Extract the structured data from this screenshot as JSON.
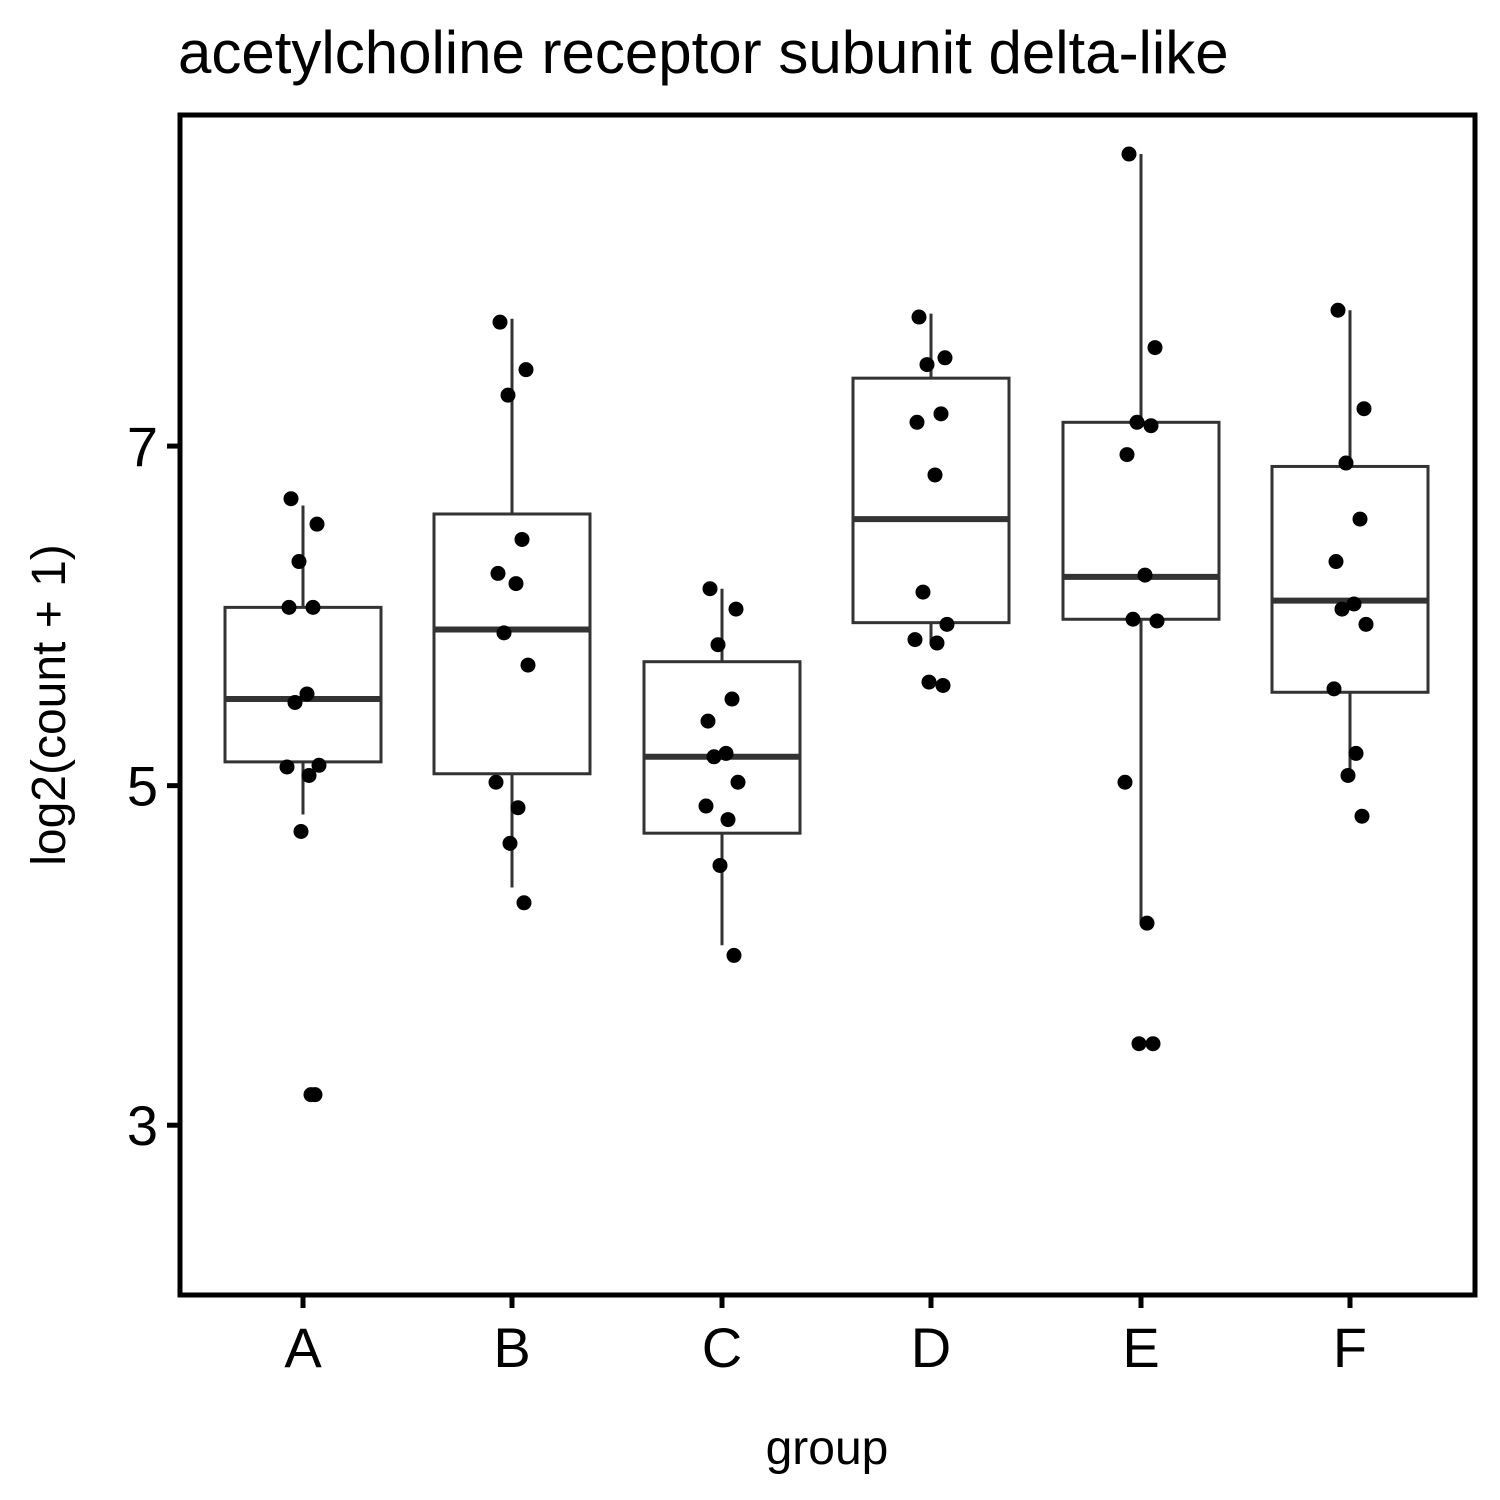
{
  "chart_data": {
    "type": "box",
    "title": "acetylcholine receptor subunit delta-like",
    "xlabel": "group",
    "ylabel": "log2(count + 1)",
    "categories": [
      "A",
      "B",
      "C",
      "D",
      "E",
      "F"
    ],
    "yticks": [
      3,
      5,
      7
    ],
    "ylim": [
      2.0,
      8.95
    ],
    "grid": false,
    "boxes": [
      {
        "group": "A",
        "whisker_low": 4.83,
        "q1": 5.14,
        "median": 5.51,
        "q3": 6.05,
        "whisker_high": 6.65
      },
      {
        "group": "B",
        "whisker_low": 4.4,
        "q1": 5.07,
        "median": 5.92,
        "q3": 6.6,
        "whisker_high": 7.75
      },
      {
        "group": "C",
        "whisker_low": 4.06,
        "q1": 4.72,
        "median": 5.17,
        "q3": 5.73,
        "whisker_high": 6.16
      },
      {
        "group": "D",
        "whisker_low": 5.84,
        "q1": 5.96,
        "median": 6.57,
        "q3": 7.4,
        "whisker_high": 7.78
      },
      {
        "group": "E",
        "whisker_low": 4.19,
        "q1": 5.98,
        "median": 6.23,
        "q3": 7.14,
        "whisker_high": 8.72
      },
      {
        "group": "F",
        "whisker_low": 5.06,
        "q1": 5.55,
        "median": 6.09,
        "q3": 6.88,
        "whisker_high": 7.8
      }
    ],
    "points": [
      {
        "group": "A",
        "y": [
          6.69,
          6.54,
          6.32,
          6.05,
          6.05,
          5.54,
          5.49,
          5.12,
          5.11,
          5.06,
          4.73,
          3.18,
          3.18
        ]
      },
      {
        "group": "B",
        "y": [
          7.73,
          7.45,
          7.3,
          6.45,
          6.25,
          6.19,
          5.9,
          5.71,
          5.02,
          4.87,
          4.66,
          4.31
        ]
      },
      {
        "group": "C",
        "y": [
          6.16,
          6.04,
          5.83,
          5.51,
          5.38,
          5.19,
          5.17,
          5.02,
          4.88,
          4.8,
          4.53,
          4.0
        ]
      },
      {
        "group": "D",
        "y": [
          7.76,
          7.52,
          7.48,
          7.19,
          7.14,
          6.83,
          6.14,
          5.95,
          5.86,
          5.84,
          5.61,
          5.59
        ]
      },
      {
        "group": "E",
        "y": [
          8.72,
          7.58,
          7.14,
          7.12,
          6.95,
          6.24,
          5.98,
          5.97,
          5.02,
          4.19,
          3.48,
          3.48
        ]
      },
      {
        "group": "F",
        "y": [
          7.8,
          7.22,
          6.9,
          6.57,
          6.32,
          6.07,
          6.04,
          5.95,
          5.57,
          5.19,
          5.06,
          4.82
        ]
      }
    ]
  }
}
